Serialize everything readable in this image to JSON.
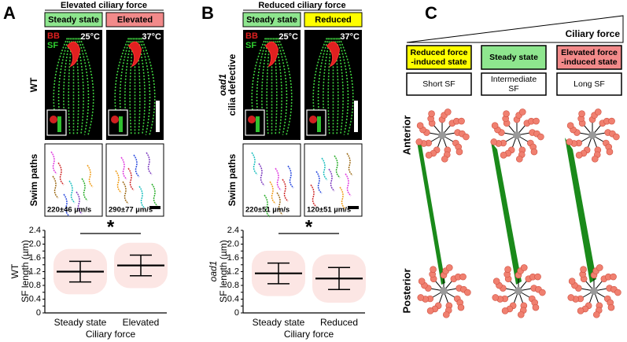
{
  "panels": [
    {
      "label": "A",
      "title": "Elevated ciliary force",
      "conditions": [
        "Steady state",
        "Elevated"
      ],
      "condition_colors": [
        "#8ee68e",
        "#f28a8a"
      ],
      "temperatures": [
        "25°C",
        "37°C"
      ],
      "stains": [
        "BB",
        "SF"
      ],
      "strain": [
        "WT"
      ],
      "swim_label": "Swim paths",
      "speeds": [
        "220±46 µm/s",
        "290±77 µm/s"
      ],
      "plot": {
        "type": "dot",
        "categories": [
          "Steady state",
          "Elevated"
        ],
        "x_label": "Ciliary force",
        "y_label": [
          "WT",
          "SF length (µm)"
        ],
        "means": [
          1.2,
          1.38
        ],
        "sd": [
          0.3,
          0.3
        ],
        "color": "#e8564b",
        "significance": "*",
        "ylim": [
          0,
          2.4
        ],
        "yticks": [
          0,
          0.2,
          0.4,
          0.6,
          0.8,
          {
            "value": 1,
            "label": "1.0"
          },
          1.2,
          1.4,
          1.6,
          1.8,
          {
            "value": 2,
            "label": "2.0"
          },
          2.2,
          2.4
        ]
      }
    },
    {
      "label": "B",
      "title": "Reduced ciliary force",
      "conditions": [
        "Steady state",
        "Reduced"
      ],
      "condition_colors": [
        "#8ee68e",
        "#ffff00"
      ],
      "temperatures": [
        "25°C",
        "37°C"
      ],
      "stains": [
        "BB",
        "SF"
      ],
      "strain": [
        "oad1",
        "cilia defective"
      ],
      "swim_label": "Swim paths",
      "speeds": [
        "220±51 µm/s",
        "120±51 µm/s"
      ],
      "plot": {
        "type": "dot",
        "categories": [
          "Steady state",
          "Reduced"
        ],
        "x_label": "Ciliary force",
        "y_label": [
          "oad1",
          "SF length (µm)"
        ],
        "means": [
          1.15,
          1.0
        ],
        "sd": [
          0.3,
          0.32
        ],
        "color": "#e8564b",
        "significance": "*",
        "ylim": [
          0,
          2.4
        ],
        "yticks": [
          0,
          0.2,
          0.4,
          0.6,
          0.8,
          {
            "value": 1,
            "label": "1.0"
          },
          1.2,
          1.4,
          1.6,
          1.8,
          {
            "value": 2,
            "label": "2.0"
          },
          2.2,
          2.4
        ]
      }
    }
  ],
  "model": {
    "label": "C",
    "gradient_label": "Ciliary force",
    "states": [
      [
        "Reduced force",
        "-induced state"
      ],
      [
        "Steady state"
      ],
      [
        "Elevated force",
        "-induced state"
      ]
    ],
    "state_colors": [
      "#ffff00",
      "#8ee68e",
      "#f28a8a"
    ],
    "sf": [
      [
        "Short SF"
      ],
      [
        "Intermediate",
        "SF"
      ],
      [
        "Long SF"
      ]
    ],
    "axis": [
      "Anterior",
      "Posterior"
    ]
  }
}
